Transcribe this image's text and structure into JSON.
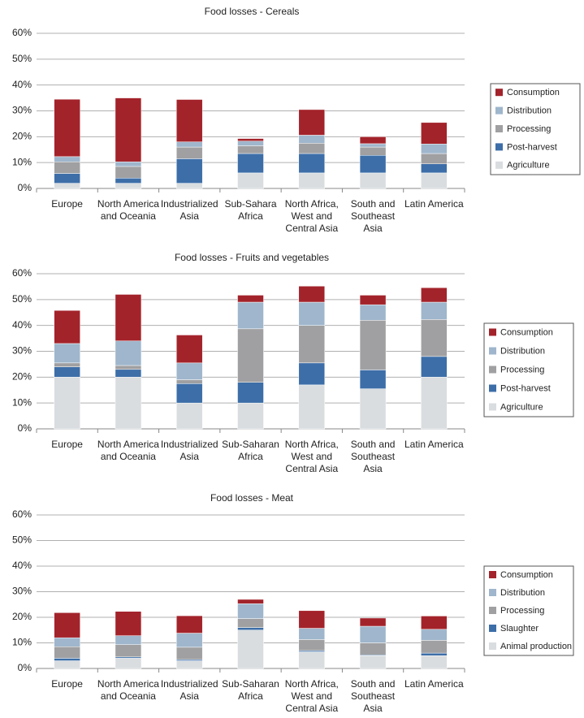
{
  "chart_data": [
    {
      "type": "bar",
      "stacked": true,
      "title": "Food losses - Cereals",
      "categories": [
        "Europe",
        "North America and Oceania",
        "Industrialized Asia",
        "Sub-Sahara Africa",
        "North Africa, West and Central Asia",
        "South and Southeast Asia",
        "Latin America"
      ],
      "series": [
        {
          "name": "Agriculture",
          "color": "#d9dde0",
          "values": [
            2,
            2,
            2,
            6,
            6,
            6,
            6
          ]
        },
        {
          "name": "Post-harvest",
          "color": "#3d6ea8",
          "values": [
            3.8,
            2,
            9.5,
            7.5,
            7.5,
            6.8,
            3.5
          ]
        },
        {
          "name": "Processing",
          "color": "#a0a0a2",
          "values": [
            4.5,
            4.5,
            4.5,
            3,
            4,
            3.2,
            4
          ]
        },
        {
          "name": "Distribution",
          "color": "#9fb6cc",
          "values": [
            2,
            1.8,
            2,
            1.8,
            3.1,
            1.3,
            3.7
          ]
        },
        {
          "name": "Consumption",
          "color": "#a3232b",
          "values": [
            22.2,
            24.7,
            16.4,
            1,
            9.9,
            2.7,
            8.3
          ]
        }
      ],
      "ylim": [
        0,
        60
      ],
      "yticks": [
        {
          "value": 0,
          "label": "0%"
        },
        {
          "value": 10,
          "label": "10%"
        },
        {
          "value": 20,
          "label": "20%"
        },
        {
          "value": 30,
          "label": "30%"
        },
        {
          "value": 40,
          "label": "40%"
        },
        {
          "value": 50,
          "label": "50%"
        },
        {
          "value": 60,
          "label": "60%"
        }
      ],
      "grid": true,
      "legend": "right"
    },
    {
      "type": "bar",
      "stacked": true,
      "title": "Food losses - Fruits and vegetables",
      "categories": [
        "Europe",
        "North America and Oceania",
        "Industrialized Asia",
        "Sub-Saharan Africa",
        "North Africa, West and Central Asia",
        "South and Southeast Asia",
        "Latin America"
      ],
      "series": [
        {
          "name": "Agriculture",
          "color": "#d9dde0",
          "values": [
            20,
            20,
            10,
            10,
            17,
            15.5,
            20
          ]
        },
        {
          "name": "Post-harvest",
          "color": "#3d6ea8",
          "values": [
            4,
            3,
            7.5,
            8,
            8.5,
            7.3,
            8
          ]
        },
        {
          "name": "Processing",
          "color": "#a0a0a2",
          "values": [
            1.5,
            1.5,
            1.5,
            20.7,
            14.5,
            19.2,
            14.3
          ]
        },
        {
          "name": "Distribution",
          "color": "#9fb6cc",
          "values": [
            7.5,
            9.5,
            6.5,
            10.3,
            9,
            6,
            6.7
          ]
        },
        {
          "name": "Consumption",
          "color": "#a3232b",
          "values": [
            12.8,
            18,
            10.8,
            2.7,
            6.2,
            3.7,
            5.6
          ]
        }
      ],
      "ylim": [
        0,
        60
      ],
      "yticks": [
        {
          "value": 0,
          "label": "0%"
        },
        {
          "value": 10,
          "label": "10%"
        },
        {
          "value": 20,
          "label": "20%"
        },
        {
          "value": 30,
          "label": "30%"
        },
        {
          "value": 40,
          "label": "40%"
        },
        {
          "value": 50,
          "label": "50%"
        },
        {
          "value": 60,
          "label": "60%"
        }
      ],
      "grid": true,
      "legend": "right"
    },
    {
      "type": "bar",
      "stacked": true,
      "title": "Food losses - Meat",
      "categories": [
        "Europe",
        "North America and Oceania",
        "Industrialized Asia",
        "Sub-Saharan Africa",
        "North Africa, West and Central Asia",
        "South and Southeast Asia",
        "Latin America"
      ],
      "series": [
        {
          "name": "Animal production",
          "color": "#d9dde0",
          "values": [
            3,
            4,
            3,
            15,
            6.5,
            5,
            5
          ]
        },
        {
          "name": "Slaughter",
          "color": "#3d6ea8",
          "values": [
            1,
            0.5,
            0.5,
            1,
            0.5,
            0.3,
            1
          ]
        },
        {
          "name": "Processing",
          "color": "#a0a0a2",
          "values": [
            4.5,
            4.8,
            4.8,
            3.5,
            4.3,
            4.7,
            5
          ]
        },
        {
          "name": "Distribution",
          "color": "#9fb6cc",
          "values": [
            3.5,
            3.5,
            5.5,
            5.8,
            4.4,
            6.5,
            4.3
          ]
        },
        {
          "name": "Consumption",
          "color": "#a3232b",
          "values": [
            9.8,
            9.5,
            6.8,
            1.7,
            6.9,
            3.2,
            5.2
          ]
        }
      ],
      "ylim": [
        0,
        60
      ],
      "yticks": [
        {
          "value": 0,
          "label": "0%"
        },
        {
          "value": 10,
          "label": "10%"
        },
        {
          "value": 20,
          "label": "20%"
        },
        {
          "value": 30,
          "label": "30%"
        },
        {
          "value": 40,
          "label": "40%"
        },
        {
          "value": 50,
          "label": "50%"
        },
        {
          "value": 60,
          "label": "60%"
        }
      ],
      "grid": true,
      "legend": "right"
    }
  ]
}
